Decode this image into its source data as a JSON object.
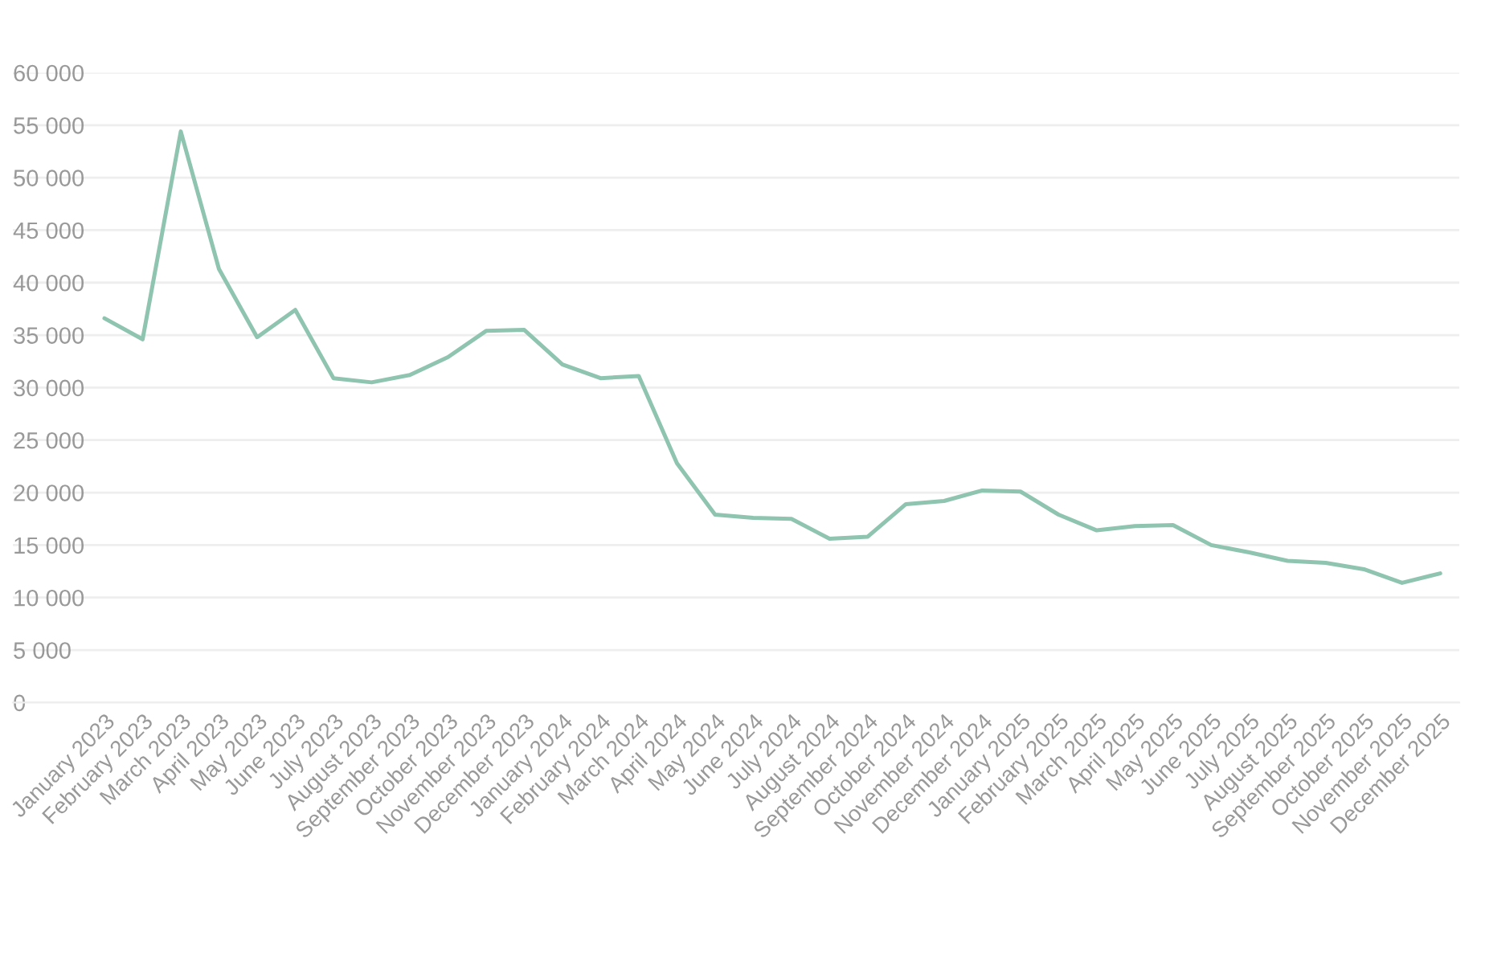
{
  "chart_data": {
    "type": "line",
    "categories": [
      "January 2023",
      "February 2023",
      "March 2023",
      "April 2023",
      "May 2023",
      "June 2023",
      "July 2023",
      "August 2023",
      "September 2023",
      "October 2023",
      "November 2023",
      "December 2023",
      "January 2024",
      "February 2024",
      "March 2024",
      "April 2024",
      "May 2024",
      "June 2024",
      "July 2024",
      "August 2024",
      "September 2024",
      "October 2024",
      "November 2024",
      "December 2024",
      "January 2025",
      "February 2025",
      "March 2025",
      "April 2025",
      "May 2025",
      "June 2025",
      "July 2025",
      "August 2025",
      "September 2025",
      "October 2025",
      "November 2025",
      "December 2025"
    ],
    "series": [
      {
        "color": "#8fc4b0",
        "values": [
          36600,
          34600,
          54400,
          41300,
          34800,
          37400,
          30900,
          30500,
          31200,
          32900,
          35400,
          35500,
          32200,
          30900,
          31100,
          22800,
          17900,
          17600,
          17500,
          15600,
          15800,
          18900,
          19200,
          20200,
          20100,
          17900,
          16400,
          16800,
          16900,
          15000,
          14300,
          13500,
          13300,
          12700,
          11400,
          12300
        ]
      }
    ],
    "ylim": [
      0,
      60000
    ],
    "yticks": [
      {
        "value": 0,
        "label": "0"
      },
      {
        "value": 5000,
        "label": "5 000"
      },
      {
        "value": 10000,
        "label": "10 000"
      },
      {
        "value": 15000,
        "label": "15 000"
      },
      {
        "value": 20000,
        "label": "20 000"
      },
      {
        "value": 25000,
        "label": "25 000"
      },
      {
        "value": 30000,
        "label": "30 000"
      },
      {
        "value": 35000,
        "label": "35 000"
      },
      {
        "value": 40000,
        "label": "40 000"
      },
      {
        "value": 45000,
        "label": "45 000"
      },
      {
        "value": 50000,
        "label": "50 000"
      },
      {
        "value": 55000,
        "label": "55 000"
      },
      {
        "value": 60000,
        "label": "60 000"
      }
    ],
    "grid": "y",
    "legend": false,
    "marker": "none",
    "line_style": "solid"
  }
}
